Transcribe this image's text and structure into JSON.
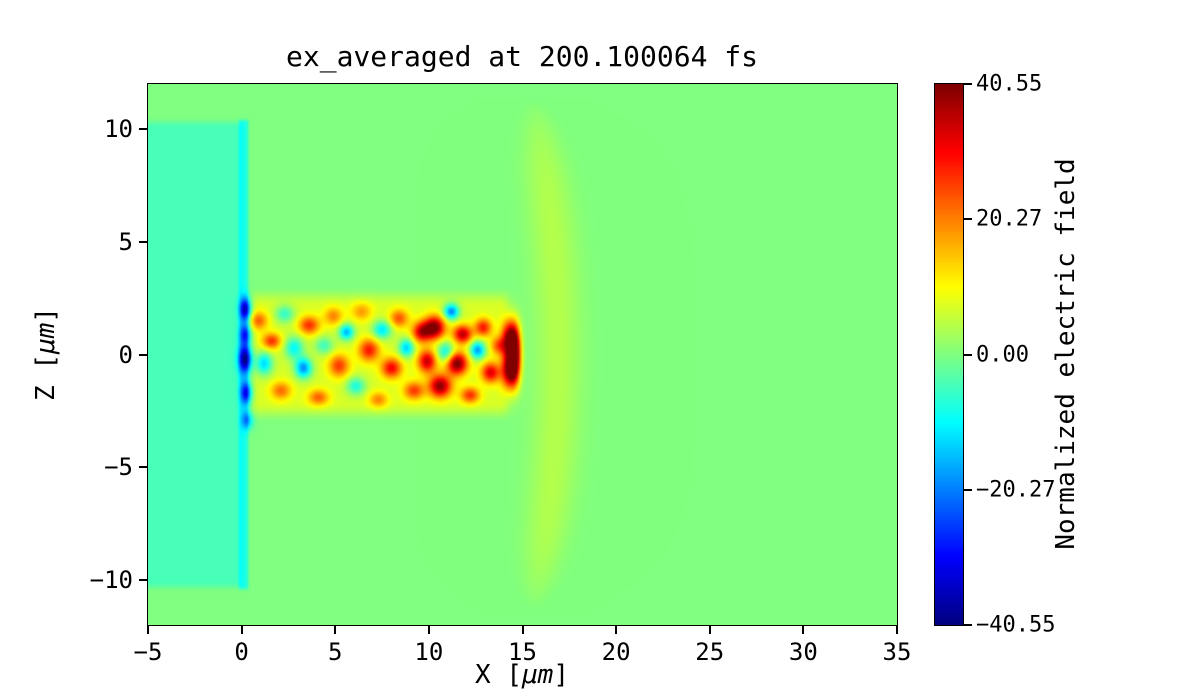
{
  "figure": {
    "background": "#ffffff"
  },
  "axes": {
    "xlabel_prefix": "X [",
    "xlabel_unit": "μm",
    "xlabel_suffix": "]",
    "ylabel_prefix": "Z [",
    "ylabel_unit": "μm",
    "ylabel_suffix": "]"
  },
  "chart_data": {
    "type": "heatmap",
    "title": "ex_averaged at 200.100064 fs",
    "xlabel": "X [μm]",
    "ylabel": "Z [μm]",
    "xlim": [
      -5,
      35
    ],
    "ylim": [
      -12,
      12
    ],
    "clim": [
      -40.55,
      40.55
    ],
    "colormap": "jet",
    "grid": false,
    "xticks": [
      {
        "v": -5,
        "label": "−5"
      },
      {
        "v": 0,
        "label": "0"
      },
      {
        "v": 5,
        "label": "5"
      },
      {
        "v": 10,
        "label": "10"
      },
      {
        "v": 15,
        "label": "15"
      },
      {
        "v": 20,
        "label": "20"
      },
      {
        "v": 25,
        "label": "25"
      },
      {
        "v": 30,
        "label": "30"
      },
      {
        "v": 35,
        "label": "35"
      }
    ],
    "yticks": [
      {
        "v": 10,
        "label": "10"
      },
      {
        "v": 5,
        "label": "5"
      },
      {
        "v": 0,
        "label": "0"
      },
      {
        "v": -5,
        "label": "−5"
      },
      {
        "v": -10,
        "label": "−10"
      }
    ],
    "colorbar": {
      "label": "Normalized electric field",
      "ticks": [
        {
          "v": 40.55,
          "label": "40.55"
        },
        {
          "v": 20.27,
          "label": "20.27"
        },
        {
          "v": 0,
          "label": "0.00"
        },
        {
          "v": -20.27,
          "label": "−20.27"
        },
        {
          "v": -40.55,
          "label": "−40.55"
        }
      ]
    },
    "field_model": {
      "background_value": 0,
      "shapes": [
        {
          "type": "rect",
          "x0": -6.0,
          "x1": -0.05,
          "z0": -10.3,
          "z1": 10.3,
          "e": 0.5,
          "v": -4.5
        },
        {
          "type": "rect",
          "x0": -0.15,
          "x1": 0.35,
          "z0": -10.4,
          "z1": 10.4,
          "e": 0.25,
          "v": -8
        },
        {
          "type": "rect",
          "x0": 0.5,
          "x1": 14.2,
          "z0": -2.6,
          "z1": 2.6,
          "e": 0.9,
          "v": 7
        },
        {
          "type": "band",
          "a": 16.9,
          "b": -0.01,
          "w": 1.25,
          "zmax": 11.3,
          "v": 4.2
        }
      ],
      "blobs": [
        [
          0.2,
          2.0,
          0.3,
          0.5,
          -30
        ],
        [
          0.2,
          0.9,
          0.3,
          0.45,
          -22
        ],
        [
          0.2,
          -0.2,
          0.35,
          0.6,
          -34
        ],
        [
          0.25,
          -1.7,
          0.3,
          0.5,
          -26
        ],
        [
          0.3,
          -2.9,
          0.3,
          0.4,
          -16
        ],
        [
          0.9,
          1.5,
          0.5,
          0.4,
          16
        ],
        [
          1.2,
          -0.4,
          0.45,
          0.5,
          -20
        ],
        [
          1.6,
          0.6,
          0.5,
          0.35,
          20
        ],
        [
          2.1,
          -1.6,
          0.55,
          0.4,
          15
        ],
        [
          2.3,
          1.8,
          0.5,
          0.4,
          -13
        ],
        [
          2.8,
          0.3,
          0.5,
          0.5,
          -17
        ],
        [
          3.3,
          -0.6,
          0.45,
          0.45,
          -26
        ],
        [
          3.6,
          1.3,
          0.55,
          0.4,
          20
        ],
        [
          4.1,
          -1.9,
          0.55,
          0.35,
          16
        ],
        [
          4.4,
          0.4,
          0.5,
          0.4,
          -12
        ],
        [
          4.9,
          1.7,
          0.5,
          0.4,
          13
        ],
        [
          5.2,
          -0.5,
          0.55,
          0.5,
          19
        ],
        [
          5.6,
          1.0,
          0.4,
          0.35,
          -23
        ],
        [
          6.1,
          -1.4,
          0.5,
          0.4,
          -15
        ],
        [
          6.4,
          1.9,
          0.55,
          0.4,
          11
        ],
        [
          6.8,
          0.2,
          0.55,
          0.5,
          22
        ],
        [
          7.3,
          -2.0,
          0.5,
          0.35,
          13
        ],
        [
          7.5,
          1.1,
          0.5,
          0.4,
          -19
        ],
        [
          8.0,
          -0.6,
          0.55,
          0.45,
          24
        ],
        [
          8.4,
          1.6,
          0.5,
          0.4,
          17
        ],
        [
          8.8,
          0.3,
          0.4,
          0.4,
          -21
        ],
        [
          9.2,
          -1.6,
          0.55,
          0.4,
          19
        ],
        [
          9.6,
          1.0,
          0.5,
          0.45,
          26
        ],
        [
          9.9,
          -0.3,
          0.5,
          0.5,
          28
        ],
        [
          10.3,
          1.2,
          0.55,
          0.5,
          35
        ],
        [
          10.6,
          -1.4,
          0.6,
          0.5,
          33
        ],
        [
          10.9,
          0.1,
          0.45,
          0.45,
          -18
        ],
        [
          11.2,
          1.9,
          0.4,
          0.35,
          -27
        ],
        [
          11.5,
          -0.4,
          0.55,
          0.5,
          35
        ],
        [
          11.8,
          0.9,
          0.5,
          0.4,
          29
        ],
        [
          12.2,
          -1.8,
          0.5,
          0.35,
          20
        ],
        [
          12.6,
          0.2,
          0.4,
          0.4,
          -25
        ],
        [
          12.9,
          1.2,
          0.45,
          0.4,
          22
        ],
        [
          13.3,
          -0.8,
          0.5,
          0.45,
          26
        ],
        [
          13.7,
          0.4,
          0.4,
          0.4,
          16
        ],
        [
          14.3,
          0.7,
          0.4,
          0.8,
          36
        ],
        [
          14.3,
          -0.7,
          0.4,
          0.8,
          36
        ],
        [
          14.6,
          0.0,
          0.3,
          1.2,
          40
        ]
      ]
    }
  }
}
